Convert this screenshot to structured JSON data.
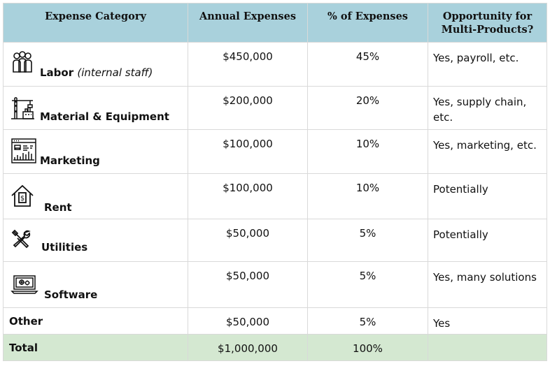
{
  "headers": {
    "category": "Expense Category",
    "annual": "Annual Expenses",
    "percent": "% of Expenses",
    "opportunity": "Opportunity for Multi-Products?"
  },
  "rows": [
    {
      "category": "Labor",
      "sub": "(internal staff)",
      "icon": "people-icon",
      "annual": "$450,000",
      "percent": "45%",
      "opportunity": "Yes, payroll, etc."
    },
    {
      "category": "Material & Equipment",
      "icon": "crane-factory-icon",
      "annual": "$200,000",
      "percent": "20%",
      "opportunity": "Yes, supply chain, etc."
    },
    {
      "category": "Marketing",
      "icon": "marketing-dashboard-icon",
      "annual": "$100,000",
      "percent": "10%",
      "opportunity": "Yes, marketing, etc."
    },
    {
      "category": "Rent",
      "icon": "house-dollar-icon",
      "annual": "$100,000",
      "percent": "10%",
      "opportunity": "Potentially"
    },
    {
      "category": "Utilities",
      "icon": "wrench-screwdriver-icon",
      "annual": "$50,000",
      "percent": "5%",
      "opportunity": "Potentially"
    },
    {
      "category": "Software",
      "icon": "laptop-gears-icon",
      "annual": "$50,000",
      "percent": "5%",
      "opportunity": "Yes, many solutions"
    },
    {
      "category": "Other",
      "annual": "$50,000",
      "percent": "5%",
      "opportunity": "Yes"
    }
  ],
  "total": {
    "category": "Total",
    "annual": "$1,000,000",
    "percent": "100%",
    "opportunity": ""
  },
  "colors": {
    "header_bg": "#a9d1dc",
    "total_bg": "#d4e8d1",
    "border": "#d9d9d9"
  }
}
